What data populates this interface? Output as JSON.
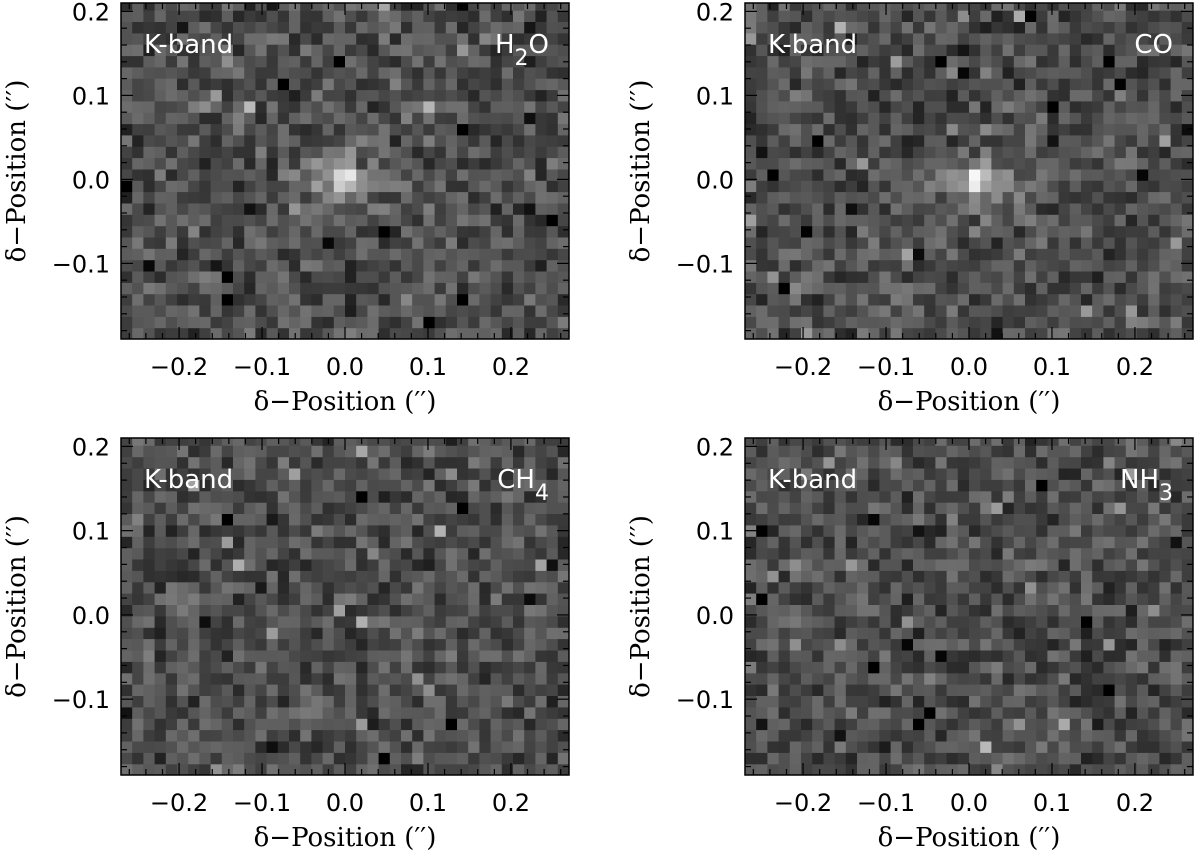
{
  "chart_data": [
    {
      "type": "heatmap",
      "band_label": "K-band",
      "molecule": {
        "main": "H",
        "sub": "2",
        "tail": "O"
      },
      "xlabel": "δ−Position (′′)",
      "ylabel": "δ−Position (′′)",
      "xlim": [
        -0.27,
        0.27
      ],
      "ylim": [
        -0.19,
        0.21
      ],
      "xticks": [
        "−0.2",
        "−0.1",
        "0.0",
        "0.1",
        "0.2"
      ],
      "yticks": [
        "−0.1",
        "0.0",
        "0.1",
        "0.2"
      ],
      "peak": {
        "x": 0.0,
        "y": 0.0,
        "strength": 1.0
      },
      "noise_seed": 11,
      "colormap": "grayscale"
    },
    {
      "type": "heatmap",
      "band_label": "K-band",
      "molecule": {
        "main": "CO",
        "sub": "",
        "tail": ""
      },
      "xlabel": "δ−Position (′′)",
      "ylabel": "δ−Position (′′)",
      "xlim": [
        -0.27,
        0.27
      ],
      "ylim": [
        -0.19,
        0.21
      ],
      "xticks": [
        "−0.2",
        "−0.1",
        "0.0",
        "0.1",
        "0.2"
      ],
      "yticks": [
        "−0.1",
        "0.0",
        "0.1",
        "0.2"
      ],
      "peak": {
        "x": 0.01,
        "y": 0.0,
        "strength": 1.0
      },
      "noise_seed": 23,
      "colormap": "grayscale"
    },
    {
      "type": "heatmap",
      "band_label": "K-band",
      "molecule": {
        "main": "CH",
        "sub": "4",
        "tail": ""
      },
      "xlabel": "δ−Position (′′)",
      "ylabel": "δ−Position (′′)",
      "xlim": [
        -0.27,
        0.27
      ],
      "ylim": [
        -0.19,
        0.21
      ],
      "xticks": [
        "−0.2",
        "−0.1",
        "0.0",
        "0.1",
        "0.2"
      ],
      "yticks": [
        "−0.1",
        "0.0",
        "0.1",
        "0.2"
      ],
      "peak": null,
      "noise_seed": 37,
      "colormap": "grayscale"
    },
    {
      "type": "heatmap",
      "band_label": "K-band",
      "molecule": {
        "main": "NH",
        "sub": "3",
        "tail": ""
      },
      "xlabel": "δ−Position (′′)",
      "ylabel": "δ−Position (′′)",
      "xlim": [
        -0.27,
        0.27
      ],
      "ylim": [
        -0.19,
        0.21
      ],
      "xticks": [
        "−0.2",
        "−0.1",
        "0.0",
        "0.1",
        "0.2"
      ],
      "yticks": [
        "−0.1",
        "0.0",
        "0.1",
        "0.2"
      ],
      "peak": null,
      "noise_seed": 53,
      "colormap": "grayscale"
    }
  ]
}
